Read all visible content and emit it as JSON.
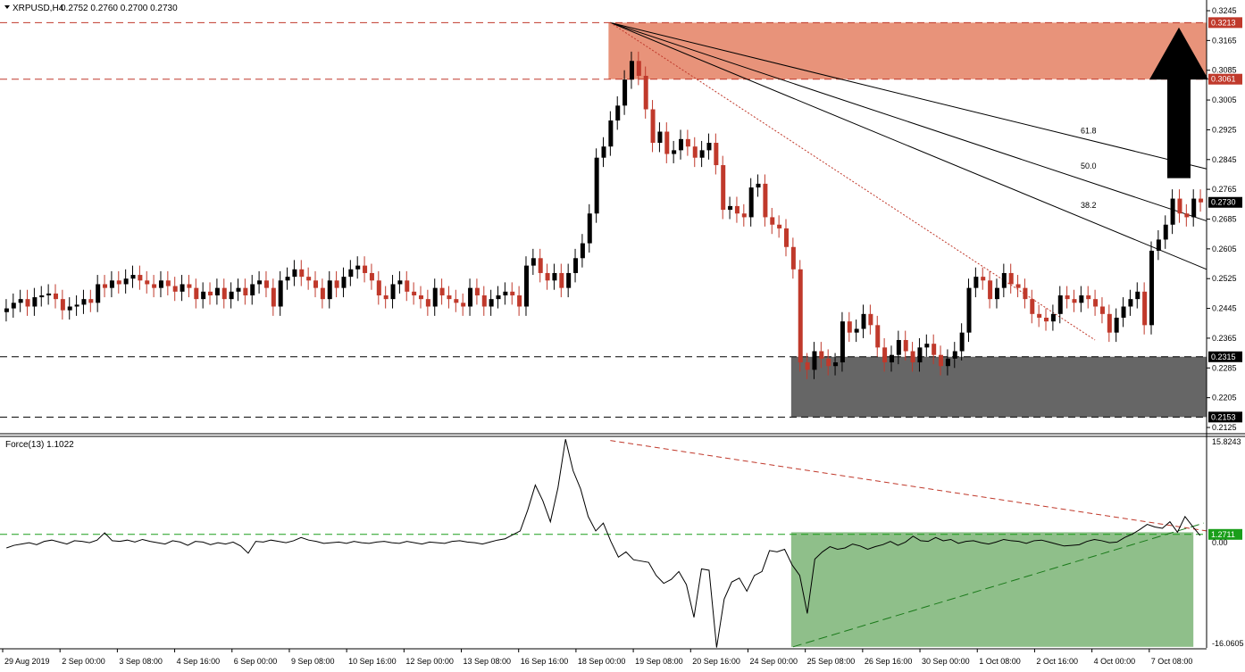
{
  "header": {
    "symbol": "XRPUSD,H4",
    "ohlc": "0.2752 0.2760 0.2700 0.2730",
    "indicator": "Force(13) 1.1022"
  },
  "colors": {
    "bull": "#000000",
    "bear": "#c0392b",
    "resistance_zone": "#e8937a",
    "support_zone": "#666666",
    "force_zone": "#8fbf8a",
    "level_tag_red": "#c0392b",
    "level_tag_black": "#000000",
    "level_tag_green": "#1a9e1a"
  },
  "chart_data": [
    {
      "type": "candlestick",
      "ylim": [
        0.2125,
        0.3245
      ],
      "y_ticks": [
        "0.3245",
        "0.3165",
        "0.3085",
        "0.3005",
        "0.2925",
        "0.2845",
        "0.2765",
        "0.2685",
        "0.2605",
        "0.2525",
        "0.2445",
        "0.2365",
        "0.2285",
        "0.2205",
        "0.2125"
      ],
      "x_ticks": [
        "29 Aug 2019",
        "2 Sep 00:00",
        "3 Sep 08:00",
        "4 Sep 16:00",
        "6 Sep 00:00",
        "9 Sep 08:00",
        "10 Sep 16:00",
        "12 Sep 00:00",
        "13 Sep 08:00",
        "16 Sep 16:00",
        "18 Sep 00:00",
        "19 Sep 08:00",
        "20 Sep 16:00",
        "24 Sep 00:00",
        "25 Sep 08:00",
        "26 Sep 16:00",
        "30 Sep 00:00",
        "1 Oct 08:00",
        "2 Oct 16:00",
        "4 Oct 00:00",
        "7 Oct 08:00"
      ],
      "levels": [
        {
          "value": 0.3213,
          "label": "0.3213",
          "style": "red"
        },
        {
          "value": 0.3061,
          "label": "0.3061",
          "style": "red"
        },
        {
          "value": 0.273,
          "label": "0.2730",
          "style": "black"
        },
        {
          "value": 0.2315,
          "label": "0.2315",
          "style": "black"
        },
        {
          "value": 0.2153,
          "label": "0.2153",
          "style": "black"
        }
      ],
      "resistance_zone": [
        0.3061,
        0.3213
      ],
      "support_zone": [
        0.2153,
        0.2315
      ],
      "fan_labels": [
        "61.8",
        "50.0",
        "38.2"
      ],
      "annotation": "up arrow toward resistance zone",
      "close": [
        0.2445,
        0.246,
        0.247,
        0.245,
        0.2475,
        0.248,
        0.2485,
        0.247,
        0.244,
        0.245,
        0.2455,
        0.247,
        0.246,
        0.251,
        0.25,
        0.252,
        0.251,
        0.2525,
        0.2535,
        0.252,
        0.251,
        0.25,
        0.252,
        0.2505,
        0.249,
        0.251,
        0.25,
        0.247,
        0.249,
        0.248,
        0.25,
        0.247,
        0.249,
        0.25,
        0.248,
        0.251,
        0.252,
        0.25,
        0.245,
        0.252,
        0.253,
        0.255,
        0.253,
        0.252,
        0.25,
        0.247,
        0.252,
        0.25,
        0.253,
        0.255,
        0.256,
        0.254,
        0.252,
        0.248,
        0.247,
        0.251,
        0.252,
        0.249,
        0.248,
        0.247,
        0.245,
        0.25,
        0.248,
        0.247,
        0.246,
        0.245,
        0.25,
        0.248,
        0.245,
        0.247,
        0.248,
        0.249,
        0.248,
        0.245,
        0.256,
        0.258,
        0.254,
        0.252,
        0.254,
        0.25,
        0.254,
        0.258,
        0.262,
        0.27,
        0.285,
        0.288,
        0.295,
        0.299,
        0.306,
        0.311,
        0.307,
        0.298,
        0.289,
        0.292,
        0.286,
        0.287,
        0.29,
        0.288,
        0.285,
        0.287,
        0.289,
        0.283,
        0.271,
        0.272,
        0.27,
        0.269,
        0.277,
        0.278,
        0.269,
        0.267,
        0.266,
        0.261,
        0.255,
        0.23,
        0.228,
        0.233,
        0.231,
        0.229,
        0.23,
        0.241,
        0.238,
        0.239,
        0.243,
        0.24,
        0.234,
        0.23,
        0.232,
        0.236,
        0.233,
        0.23,
        0.234,
        0.235,
        0.232,
        0.229,
        0.231,
        0.233,
        0.238,
        0.25,
        0.253,
        0.252,
        0.247,
        0.25,
        0.254,
        0.251,
        0.25,
        0.247,
        0.243,
        0.242,
        0.241,
        0.243,
        0.248,
        0.247,
        0.246,
        0.248,
        0.247,
        0.245,
        0.243,
        0.238,
        0.242,
        0.245,
        0.247,
        0.249,
        0.24,
        0.26,
        0.263,
        0.267,
        0.274,
        0.27,
        0.269,
        0.274,
        0.273
      ],
      "y2_ticks": [
        "15.8243",
        "0.00",
        "-16.0605"
      ],
      "y2lim": [
        -16.0605,
        15.8243
      ],
      "force_level": {
        "value": 1.2711,
        "label": "1.2711"
      },
      "force": [
        -0.8,
        -0.4,
        -0.2,
        0.0,
        -0.3,
        0.2,
        0.4,
        0.1,
        -0.2,
        0.3,
        0.2,
        0.0,
        0.4,
        1.5,
        0.3,
        0.2,
        0.4,
        0.1,
        0.5,
        0.2,
        0.0,
        -0.2,
        0.3,
        0.1,
        -0.4,
        0.2,
        0.1,
        -0.3,
        0.0,
        -0.2,
        0.1,
        -0.5,
        -1.6,
        0.2,
        0.1,
        0.4,
        0.2,
        0.0,
        0.3,
        0.8,
        0.4,
        0.2,
        -0.1,
        0.0,
        0.1,
        -0.1,
        0.2,
        0.0,
        -0.1,
        0.1,
        0.2,
        0.0,
        -0.1,
        0.2,
        0.0,
        -0.2,
        0.1,
        0.0,
        -0.1,
        0.2,
        0.3,
        0.1,
        0.0,
        -0.2,
        0.1,
        0.4,
        0.6,
        1.2,
        1.8,
        5.0,
        8.8,
        6.4,
        3.2,
        8.4,
        15.8,
        11.0,
        8.2,
        4.0,
        1.8,
        3.0,
        0.2,
        -2.2,
        -1.4,
        -2.6,
        -2.8,
        -3.0,
        -5.0,
        -6.2,
        -5.6,
        -4.4,
        -6.4,
        -11.4,
        -4.0,
        -4.2,
        -16.0,
        -8.6,
        -6.0,
        -5.4,
        -7.4,
        -5.0,
        -4.4,
        -1.2,
        -1.4,
        -1.0,
        -3.4,
        -5.0,
        -10.8,
        -2.5,
        -1.4,
        -0.6,
        -1.0,
        -0.8,
        -0.2,
        -0.5,
        -1.0,
        -0.6,
        -0.3,
        0.2,
        -0.4,
        0.1,
        1.0,
        0.3,
        0.2,
        0.8,
        0.3,
        0.5,
        -0.1,
        0.2,
        0.3,
        0.0,
        -0.2,
        0.1,
        0.5,
        0.3,
        0.2,
        -0.1,
        0.3,
        0.4,
        0.1,
        -0.2,
        -0.5,
        -0.4,
        -0.3,
        0.2,
        0.5,
        0.3,
        0.0,
        0.1,
        0.8,
        1.3,
        2.0,
        2.8,
        2.4,
        2.2,
        3.2,
        1.6,
        4.0,
        2.5,
        1.1
      ]
    }
  ]
}
